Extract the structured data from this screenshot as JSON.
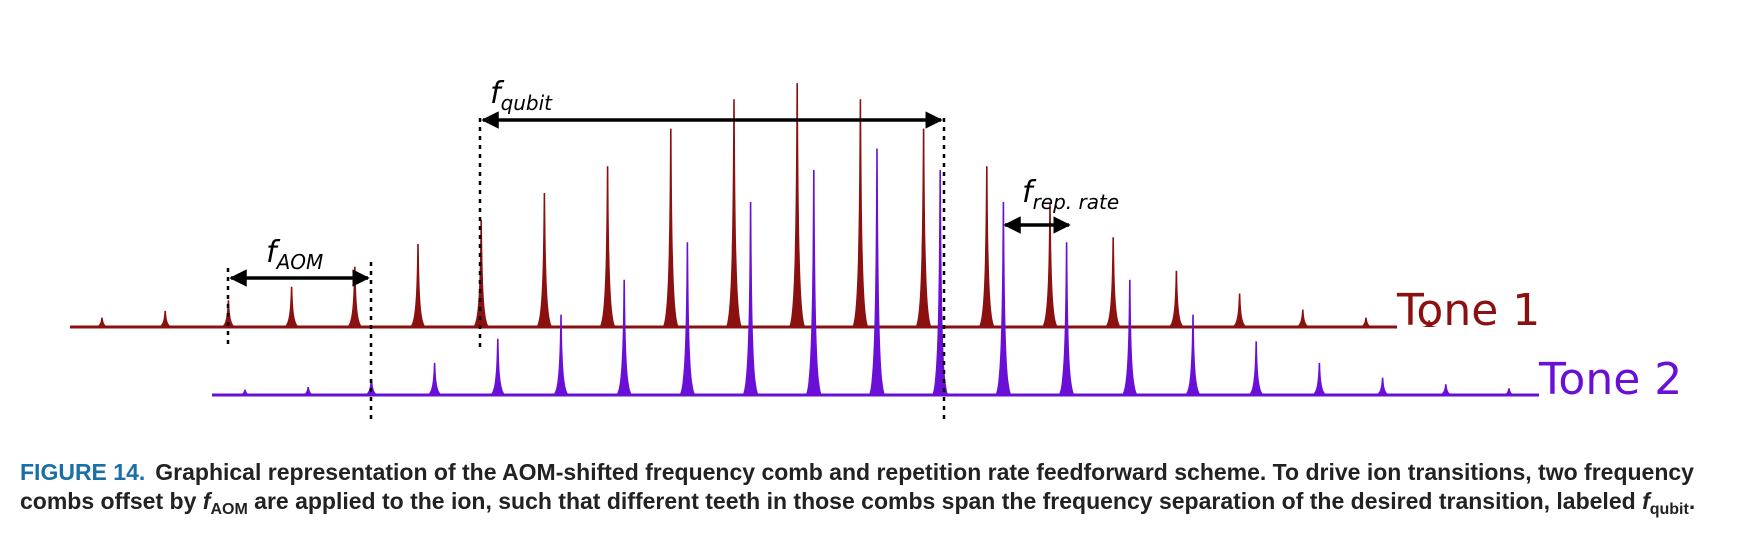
{
  "colors": {
    "tone1": "#8b1010",
    "tone2": "#6a0fd6",
    "annotation": "#000000",
    "caption_label": "#1a6fa8",
    "caption_text": "#222222"
  },
  "tones": [
    {
      "name": "Tone 1",
      "color_key": "tone1",
      "peaks_relative": [
        0.07,
        0.12,
        0.2,
        0.3,
        0.45,
        0.62,
        0.8,
        1.0,
        1.2,
        1.48,
        1.7,
        1.82,
        1.7,
        1.48,
        1.2,
        0.92,
        0.67,
        0.42,
        0.25,
        0.13,
        0.07,
        0.05
      ]
    },
    {
      "name": "Tone 2",
      "color_key": "tone2",
      "peaks_relative": [
        0.04,
        0.06,
        0.12,
        0.24,
        0.42,
        0.6,
        0.86,
        1.14,
        1.44,
        1.68,
        1.84,
        1.68,
        1.44,
        1.14,
        0.86,
        0.6,
        0.4,
        0.24,
        0.13,
        0.08,
        0.05
      ]
    }
  ],
  "annotations": {
    "f_aom": {
      "main": "f",
      "sub": "AOM"
    },
    "f_qubit": {
      "main": "f",
      "sub": "qubit"
    },
    "f_rep": {
      "main": "f",
      "sub": "rep. rate"
    }
  },
  "caption": {
    "label": "FIGURE 14.",
    "part1": "Graphical representation of the AOM-shifted frequency comb and repetition rate feedforward scheme. To drive ion transitions, two frequency combs offset by ",
    "f1": "f",
    "f1_sub": "AOM",
    "part2": " are applied to the ion, such that different teeth in those combs span the frequency separation of the desired transition, labeled ",
    "f2": "f",
    "f2_sub": "qubit",
    "part3": "."
  }
}
